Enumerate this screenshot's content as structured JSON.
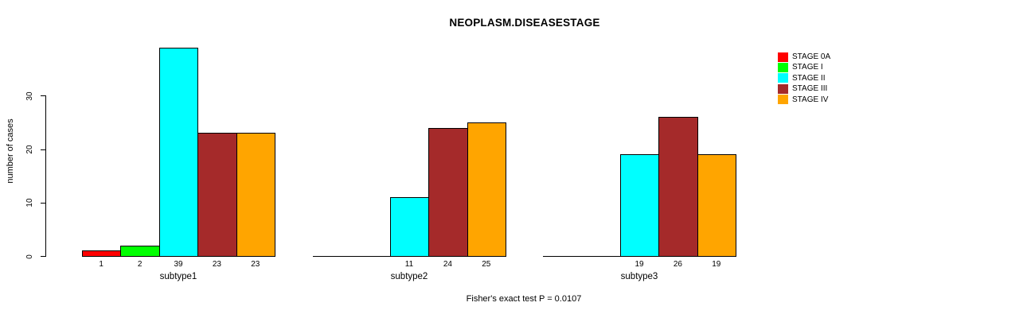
{
  "title": "NEOPLASM.DISEASESTAGE",
  "footer": "Fisher's exact test P = 0.0107",
  "chart_data": {
    "type": "bar",
    "title": "NEOPLASM.DISEASESTAGE",
    "subtitle": "",
    "xlabel": "",
    "ylabel": "number of cases",
    "ylim": [
      0,
      39
    ],
    "yticks": [
      0,
      10,
      20,
      30
    ],
    "grid": false,
    "legend_position": "top-right",
    "bar_value_labels": true,
    "categories": [
      "subtype1",
      "subtype2",
      "subtype3"
    ],
    "series": [
      {
        "name": "STAGE 0A",
        "color": "#FF0000",
        "values": [
          1,
          0,
          0
        ]
      },
      {
        "name": "STAGE I",
        "color": "#00FF00",
        "values": [
          2,
          0,
          0
        ]
      },
      {
        "name": "STAGE II",
        "color": "#00FFFF",
        "values": [
          39,
          11,
          19
        ]
      },
      {
        "name": "STAGE III",
        "color": "#A52A2A",
        "values": [
          23,
          24,
          26
        ]
      },
      {
        "name": "STAGE IV",
        "color": "#FFA500",
        "values": [
          23,
          25,
          19
        ]
      }
    ],
    "footer": "Fisher's exact test P = 0.0107"
  }
}
